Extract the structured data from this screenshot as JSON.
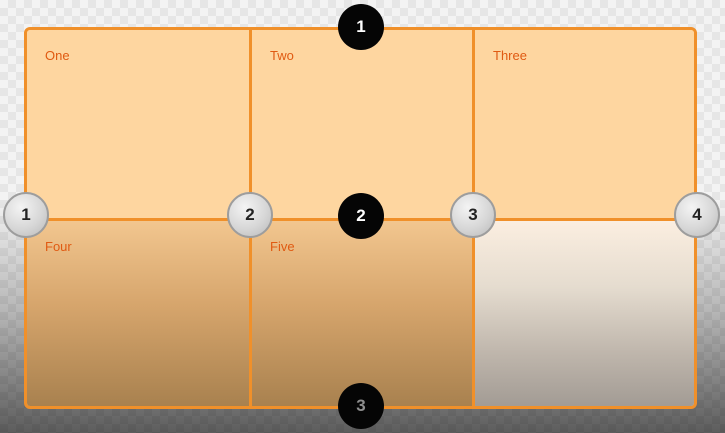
{
  "colors": {
    "accent_line": "#f0902a",
    "cell_fill": "#fed6a0",
    "label_text": "#e05a12",
    "row_marker_fill": "#050505",
    "col_marker_fill": "#d7d7d7"
  },
  "grid": {
    "cells": [
      {
        "label": "One"
      },
      {
        "label": "Two"
      },
      {
        "label": "Three"
      },
      {
        "label": "Four"
      },
      {
        "label": "Five"
      }
    ]
  },
  "column_lines": {
    "markers": [
      {
        "label": "1"
      },
      {
        "label": "2"
      },
      {
        "label": "3"
      },
      {
        "label": "4"
      }
    ]
  },
  "row_lines": {
    "markers": [
      {
        "label": "1"
      },
      {
        "label": "2"
      },
      {
        "label": "3"
      }
    ]
  }
}
